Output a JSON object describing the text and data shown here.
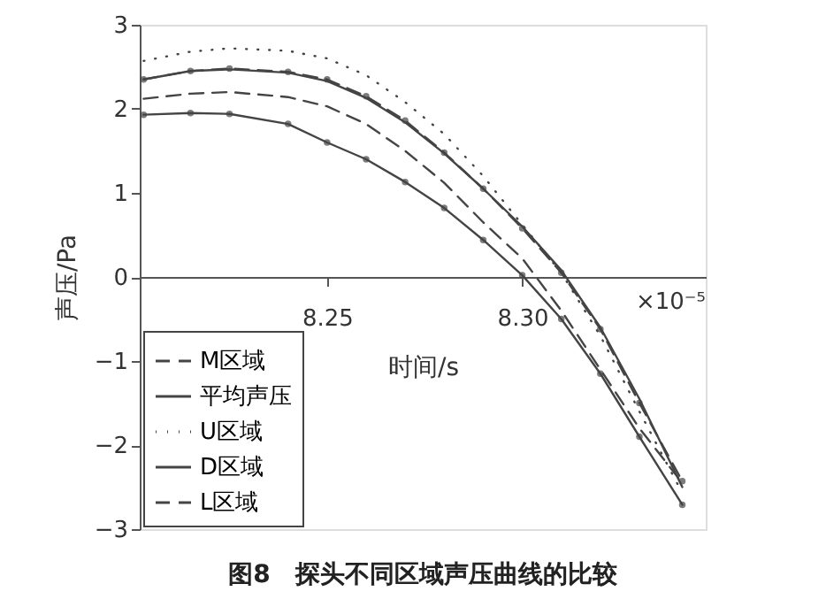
{
  "chart_data": {
    "type": "line",
    "title": "图8　探头不同区域声压曲线的比较",
    "xlabel": "时间/s",
    "ylabel": "声压/Pa",
    "annotations": [
      "×10⁻⁵"
    ],
    "x": [
      8.203,
      8.215,
      8.225,
      8.24,
      8.25,
      8.26,
      8.27,
      8.28,
      8.29,
      8.3,
      8.31,
      8.32,
      8.33,
      8.341
    ],
    "series": [
      {
        "name": "M区域",
        "color": "#444444",
        "line_style": "dashed",
        "marker": "none",
        "values": [
          2.12,
          2.18,
          2.2,
          2.14,
          2.03,
          1.82,
          1.5,
          1.12,
          0.65,
          0.22,
          -0.4,
          -1.1,
          -1.8,
          -2.45
        ]
      },
      {
        "name": "平均声压",
        "color": "#444444",
        "line_style": "solid",
        "marker": "none",
        "values": [
          2.35,
          2.45,
          2.47,
          2.43,
          2.33,
          2.13,
          1.84,
          1.47,
          1.05,
          0.6,
          0.08,
          -0.6,
          -1.45,
          -2.5
        ]
      },
      {
        "name": "U区域",
        "color": "#444444",
        "line_style": "dotted",
        "marker": "none",
        "values": [
          2.57,
          2.68,
          2.72,
          2.69,
          2.6,
          2.4,
          2.08,
          1.7,
          1.2,
          0.62,
          0.05,
          -0.7,
          -1.6,
          -2.57
        ]
      },
      {
        "name": "D区域",
        "color": "#444444",
        "line_style": "solid",
        "marker": "circle",
        "values": [
          1.93,
          1.95,
          1.94,
          1.82,
          1.6,
          1.4,
          1.13,
          0.82,
          0.44,
          0.02,
          -0.5,
          -1.15,
          -1.9,
          -2.71
        ]
      },
      {
        "name": "L区域",
        "color": "#444444",
        "line_style": "dashed",
        "marker": "circle",
        "values": [
          2.35,
          2.45,
          2.48,
          2.44,
          2.35,
          2.15,
          1.86,
          1.48,
          1.05,
          0.58,
          0.05,
          -0.62,
          -1.5,
          -2.43
        ]
      }
    ],
    "xlim": [
      8.202,
      8.347
    ],
    "xticks": [
      8.25,
      {
        "value": 8.3,
        "label": "8.30"
      }
    ],
    "ylim": [
      -3,
      3
    ],
    "yticks": [
      -3,
      -2,
      -1,
      0,
      1,
      2,
      3
    ],
    "grid": false,
    "legend": "bottom left"
  }
}
